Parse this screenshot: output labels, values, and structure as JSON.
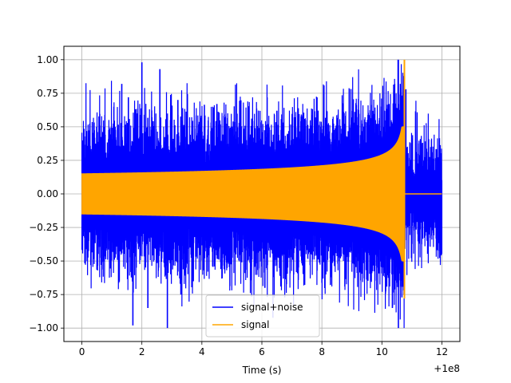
{
  "chart_data": {
    "type": "line",
    "xlabel": "Time (s)",
    "ylabel": "",
    "x_offset_label": "+1e8",
    "xlim": [
      -0.6,
      12.6
    ],
    "ylim": [
      -1.1,
      1.1
    ],
    "xticks": [
      0,
      2,
      4,
      6,
      8,
      10,
      12
    ],
    "yticks": [
      -1.0,
      -0.75,
      -0.5,
      -0.25,
      0.0,
      0.25,
      0.5,
      0.75,
      1.0
    ],
    "ytick_labels": [
      "−1.00",
      "−0.75",
      "−0.50",
      "−0.25",
      "0.00",
      "0.25",
      "0.50",
      "0.75",
      "1.00"
    ],
    "grid": true,
    "legend_position": "lower-center",
    "series": [
      {
        "name": "signal+noise",
        "color": "#0000ff",
        "x_range": [
          0,
          12
        ],
        "envelope_min": -1.0,
        "envelope_max": 1.0,
        "peaks": [
          {
            "x": 1.33,
            "y": 0.82
          },
          {
            "x": 1.55,
            "y": 0.72
          },
          {
            "x": 2.0,
            "y": 0.98
          },
          {
            "x": 2.6,
            "y": 0.93
          },
          {
            "x": 3.2,
            "y": 0.7
          },
          {
            "x": 4.5,
            "y": 0.67
          },
          {
            "x": 6.5,
            "y": 0.62
          },
          {
            "x": 10.55,
            "y": 1.0
          },
          {
            "x": 10.8,
            "y": 0.78
          },
          {
            "x": 1.7,
            "y": -0.98
          },
          {
            "x": 2.2,
            "y": -0.85
          },
          {
            "x": 2.85,
            "y": -1.0
          },
          {
            "x": 3.3,
            "y": -0.75
          },
          {
            "x": 6.1,
            "y": -0.7
          },
          {
            "x": 10.55,
            "y": -1.0
          },
          {
            "x": 10.35,
            "y": -0.85
          }
        ]
      },
      {
        "name": "signal",
        "color": "#ffa500",
        "x_range": [
          0,
          12
        ],
        "amplitude_start": 0.15,
        "merger_time": 10.75,
        "peak_max": 1.0,
        "peak_min": -0.78,
        "post_merger_value": 0.0
      }
    ]
  }
}
